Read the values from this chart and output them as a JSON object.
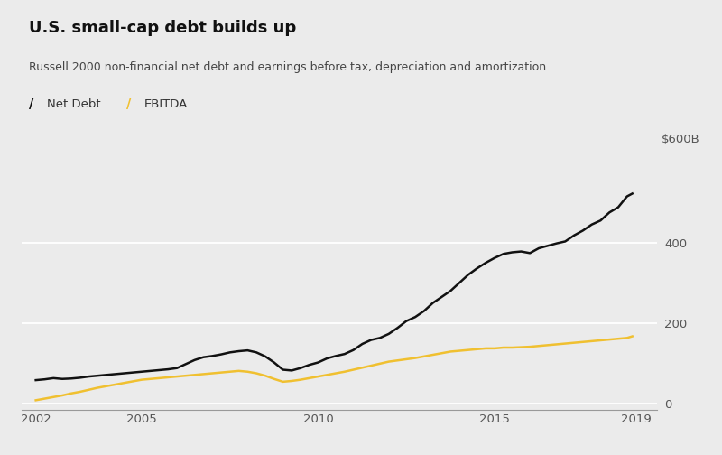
{
  "title": "U.S. small-cap debt builds up",
  "subtitle": "Russell 2000 non-financial net debt and earnings before tax, depreciation and amortization",
  "legend": [
    "Net Debt",
    "EBITDA"
  ],
  "legend_colors": [
    "#111111",
    "#f0c030"
  ],
  "background_color": "#ebebeb",
  "x_ticks": [
    2002,
    2005,
    2010,
    2015,
    2019
  ],
  "y_ticks": [
    0,
    200,
    400
  ],
  "y_top_label": "$600B",
  "y_lim": [
    -15,
    630
  ],
  "x_lim": [
    2001.6,
    2019.6
  ],
  "net_debt": {
    "years": [
      2002.0,
      2002.25,
      2002.5,
      2002.75,
      2003.0,
      2003.25,
      2003.5,
      2003.75,
      2004.0,
      2004.25,
      2004.5,
      2004.75,
      2005.0,
      2005.25,
      2005.5,
      2005.75,
      2006.0,
      2006.25,
      2006.5,
      2006.75,
      2007.0,
      2007.25,
      2007.5,
      2007.75,
      2008.0,
      2008.25,
      2008.5,
      2008.75,
      2009.0,
      2009.25,
      2009.5,
      2009.75,
      2010.0,
      2010.25,
      2010.5,
      2010.75,
      2011.0,
      2011.25,
      2011.5,
      2011.75,
      2012.0,
      2012.25,
      2012.5,
      2012.75,
      2013.0,
      2013.25,
      2013.5,
      2013.75,
      2014.0,
      2014.25,
      2014.5,
      2014.75,
      2015.0,
      2015.25,
      2015.5,
      2015.75,
      2016.0,
      2016.25,
      2016.5,
      2016.75,
      2017.0,
      2017.25,
      2017.5,
      2017.75,
      2018.0,
      2018.25,
      2018.5,
      2018.75,
      2018.9
    ],
    "values": [
      58,
      60,
      63,
      61,
      62,
      64,
      67,
      69,
      71,
      73,
      75,
      77,
      79,
      81,
      83,
      85,
      88,
      98,
      108,
      115,
      118,
      122,
      127,
      130,
      132,
      127,
      117,
      102,
      84,
      82,
      88,
      96,
      102,
      112,
      118,
      123,
      133,
      148,
      158,
      163,
      173,
      188,
      205,
      215,
      230,
      250,
      265,
      280,
      300,
      320,
      336,
      350,
      362,
      372,
      376,
      378,
      374,
      386,
      392,
      398,
      403,
      418,
      430,
      445,
      455,
      475,
      488,
      515,
      522
    ]
  },
  "ebitda": {
    "years": [
      2002.0,
      2002.25,
      2002.5,
      2002.75,
      2003.0,
      2003.25,
      2003.5,
      2003.75,
      2004.0,
      2004.25,
      2004.5,
      2004.75,
      2005.0,
      2005.25,
      2005.5,
      2005.75,
      2006.0,
      2006.25,
      2006.5,
      2006.75,
      2007.0,
      2007.25,
      2007.5,
      2007.75,
      2008.0,
      2008.25,
      2008.5,
      2008.75,
      2009.0,
      2009.25,
      2009.5,
      2009.75,
      2010.0,
      2010.25,
      2010.5,
      2010.75,
      2011.0,
      2011.25,
      2011.5,
      2011.75,
      2012.0,
      2012.25,
      2012.5,
      2012.75,
      2013.0,
      2013.25,
      2013.5,
      2013.75,
      2014.0,
      2014.25,
      2014.5,
      2014.75,
      2015.0,
      2015.25,
      2015.5,
      2015.75,
      2016.0,
      2016.25,
      2016.5,
      2016.75,
      2017.0,
      2017.25,
      2017.5,
      2017.75,
      2018.0,
      2018.25,
      2018.5,
      2018.75,
      2018.9
    ],
    "values": [
      8,
      12,
      16,
      20,
      25,
      29,
      34,
      39,
      43,
      47,
      51,
      55,
      59,
      61,
      63,
      65,
      67,
      69,
      71,
      73,
      75,
      77,
      79,
      81,
      79,
      75,
      69,
      61,
      54,
      56,
      59,
      63,
      67,
      71,
      75,
      79,
      84,
      89,
      94,
      99,
      104,
      107,
      110,
      113,
      117,
      121,
      125,
      129,
      131,
      133,
      135,
      137,
      137,
      139,
      139,
      140,
      141,
      143,
      145,
      147,
      149,
      151,
      153,
      155,
      157,
      159,
      161,
      163,
      167
    ]
  }
}
